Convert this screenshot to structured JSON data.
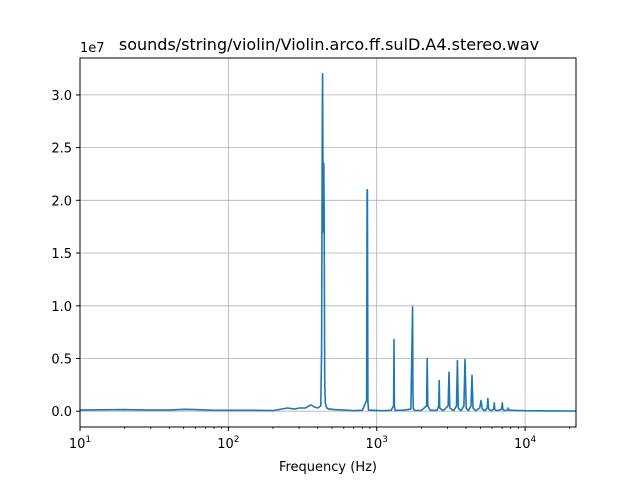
{
  "chart_data": {
    "type": "line",
    "title": "sounds/string/violin/Violin.arco.ff.sulD.A4.stereo.wav",
    "xlabel": "Frequency (Hz)",
    "ylabel": "",
    "y_multiplier_label": "1e7",
    "x_scale": "log",
    "xlim": [
      10,
      22050
    ],
    "ylim": [
      -1500000,
      33500000
    ],
    "grid": true,
    "line_color": "#1f77b4",
    "x_ticks": [
      {
        "value": 10,
        "base": "10",
        "exp": "1"
      },
      {
        "value": 100,
        "base": "10",
        "exp": "2"
      },
      {
        "value": 1000,
        "base": "10",
        "exp": "3"
      },
      {
        "value": 10000,
        "base": "10",
        "exp": "4"
      }
    ],
    "y_ticks": [
      {
        "value": 0,
        "label": "0.0"
      },
      {
        "value": 5000000,
        "label": "0.5"
      },
      {
        "value": 10000000,
        "label": "1.0"
      },
      {
        "value": 15000000,
        "label": "1.5"
      },
      {
        "value": 20000000,
        "label": "2.0"
      },
      {
        "value": 25000000,
        "label": "2.5"
      },
      {
        "value": 30000000,
        "label": "3.0"
      }
    ],
    "series": [
      {
        "x": [
          10,
          20,
          30,
          40,
          50,
          60,
          80,
          100,
          150,
          200,
          250,
          280,
          300,
          330,
          360,
          380,
          400,
          420,
          425,
          430,
          432,
          436,
          440,
          443,
          446,
          450,
          460,
          480,
          520,
          600,
          700,
          800,
          855,
          862,
          866,
          872,
          880,
          950,
          1100,
          1250,
          1300,
          1308,
          1316,
          1330,
          1500,
          1700,
          1745,
          1755,
          1765,
          1800,
          2000,
          2170,
          2190,
          2210,
          2300,
          2550,
          2620,
          2640,
          2660,
          2800,
          3030,
          3070,
          3110,
          3300,
          3450,
          3500,
          3550,
          3700,
          3870,
          3940,
          4010,
          4150,
          4320,
          4390,
          4460,
          4650,
          4950,
          5050,
          5150,
          5350,
          5560,
          5620,
          5680,
          5900,
          6150,
          6200,
          6250,
          6500,
          6950,
          7020,
          7090,
          7350,
          7650,
          7700,
          7750,
          8200,
          10000,
          15000,
          22050
        ],
        "y": [
          100000,
          150000,
          100000,
          100000,
          180000,
          150000,
          80000,
          80000,
          80000,
          60000,
          300000,
          200000,
          300000,
          300000,
          600000,
          400000,
          300000,
          500000,
          5800000,
          28000000,
          32000000,
          17000000,
          23500000,
          18000000,
          3000000,
          800000,
          300000,
          200000,
          150000,
          100000,
          50000,
          80000,
          1000000,
          21000000,
          21000000,
          1000000,
          100000,
          80000,
          50000,
          80000,
          500000,
          6800000,
          500000,
          80000,
          80000,
          200000,
          9900000,
          2000000,
          300000,
          50000,
          80000,
          500000,
          5000000,
          500000,
          80000,
          80000,
          500000,
          2900000,
          300000,
          50000,
          500000,
          3700000,
          300000,
          50000,
          500000,
          4800000,
          300000,
          50000,
          500000,
          4900000,
          300000,
          50000,
          500000,
          3400000,
          300000,
          50000,
          300000,
          1000000,
          200000,
          50000,
          300000,
          1200000,
          200000,
          50000,
          200000,
          800000,
          150000,
          50000,
          200000,
          800000,
          150000,
          50000,
          150000,
          300000,
          100000,
          80000,
          50000,
          30000,
          20000
        ]
      }
    ]
  }
}
